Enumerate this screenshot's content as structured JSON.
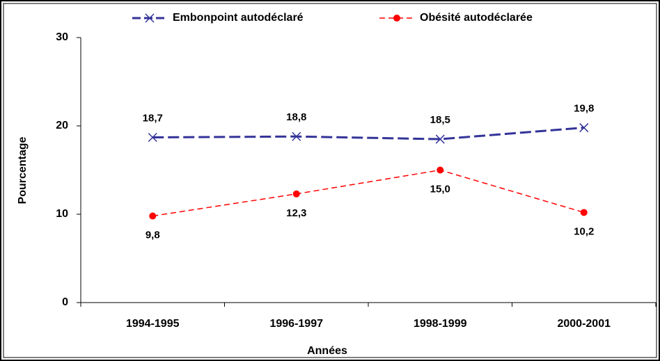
{
  "chart_data": {
    "type": "line",
    "xlabel": "Années",
    "ylabel": "Pourcentage",
    "categories": [
      "1994-1995",
      "1996-1997",
      "1998-1999",
      "2000-2001"
    ],
    "series": [
      {
        "name": "Embonpoint autodéclaré",
        "color": "#333399",
        "marker": "x",
        "values": [
          18.7,
          18.8,
          18.5,
          19.8
        ],
        "value_labels": [
          "18,7",
          "18,8",
          "18,5",
          "19,8"
        ]
      },
      {
        "name": "Obésité autodéclarée",
        "color": "#ff0000",
        "marker": "circle",
        "values": [
          9.8,
          12.3,
          15.0,
          10.2
        ],
        "value_labels": [
          "9,8",
          "12,3",
          "15,0",
          "10,2"
        ]
      }
    ],
    "ylim": [
      0,
      30
    ],
    "yticks": [
      0,
      10,
      20,
      30
    ],
    "legend": "top"
  }
}
